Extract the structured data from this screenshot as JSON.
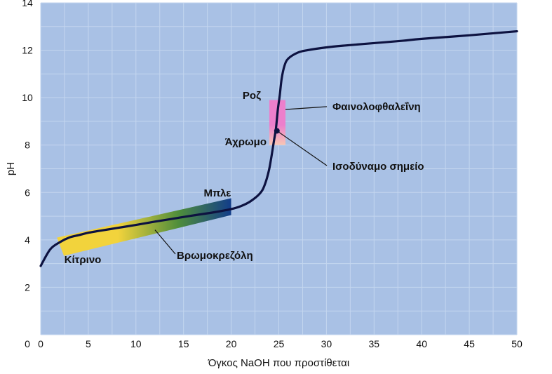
{
  "chart_data": {
    "type": "line",
    "title": "",
    "xlabel": "Όγκος NaOH που προστίθεται",
    "ylabel": "pH",
    "xlim": [
      0,
      50
    ],
    "ylim": [
      0,
      14
    ],
    "x_ticks": [
      0,
      5,
      10,
      15,
      20,
      25,
      30,
      35,
      40,
      45,
      50
    ],
    "y_ticks": [
      2,
      4,
      6,
      8,
      10,
      12,
      14
    ],
    "grid": true,
    "colors": {
      "plot_background": "#a9c1e5",
      "grid": "#c4d6ef",
      "curve": "#0d1240",
      "bromocresol_start": "#f2d33c",
      "bromocresol_mid": "#4e8d3b",
      "bromocresol_end": "#123d8a",
      "phenolphthalein_top": "#ec7fcc",
      "phenolphthalein_bottom": "#f7c6b4"
    },
    "series": [
      {
        "x": [
          0,
          1,
          2,
          3,
          4,
          5,
          6,
          8,
          10,
          12,
          14,
          16,
          18,
          20,
          21,
          22,
          23,
          23.5,
          24,
          24.5,
          24.7,
          24.9,
          25.1,
          25.3,
          25.6,
          26,
          27,
          28,
          30,
          32,
          35,
          38,
          40,
          45,
          50
        ],
        "values": [
          2.9,
          3.6,
          3.9,
          4.1,
          4.2,
          4.3,
          4.37,
          4.5,
          4.63,
          4.77,
          4.9,
          5.03,
          5.15,
          5.3,
          5.42,
          5.62,
          5.95,
          6.3,
          7.0,
          8.2,
          8.7,
          9.5,
          10.1,
          10.8,
          11.35,
          11.65,
          11.9,
          12.0,
          12.12,
          12.2,
          12.3,
          12.4,
          12.48,
          12.63,
          12.8
        ]
      }
    ],
    "indicators": [
      {
        "name": "Βρωμοκρεζόλη",
        "color_low": "Κίτρινο",
        "color_high": "Μπλε",
        "x_range": [
          2,
          20
        ],
        "ph_range": [
          3.8,
          5.4
        ]
      },
      {
        "name": "Φαινολοφθαλεΐνη",
        "color_low": "Άχρωμο",
        "color_high": "Ροζ",
        "x_range": [
          24,
          25.7
        ],
        "ph_range": [
          8.0,
          9.9
        ]
      }
    ],
    "annotations": [
      {
        "text": "Ισοδύναμο σημείο",
        "x": 24.8,
        "y": 8.6
      },
      {
        "text": "Φαινολοφθαλεΐνη",
        "target_x": 25.7,
        "target_y": 9.5
      },
      {
        "text": "Βρωμοκρεζόλη",
        "target_x": 12,
        "target_y": 4.6
      },
      {
        "text": "Ροζ"
      },
      {
        "text": "Άχρωμο"
      },
      {
        "text": "Μπλε"
      },
      {
        "text": "Κίτρινο"
      }
    ]
  }
}
